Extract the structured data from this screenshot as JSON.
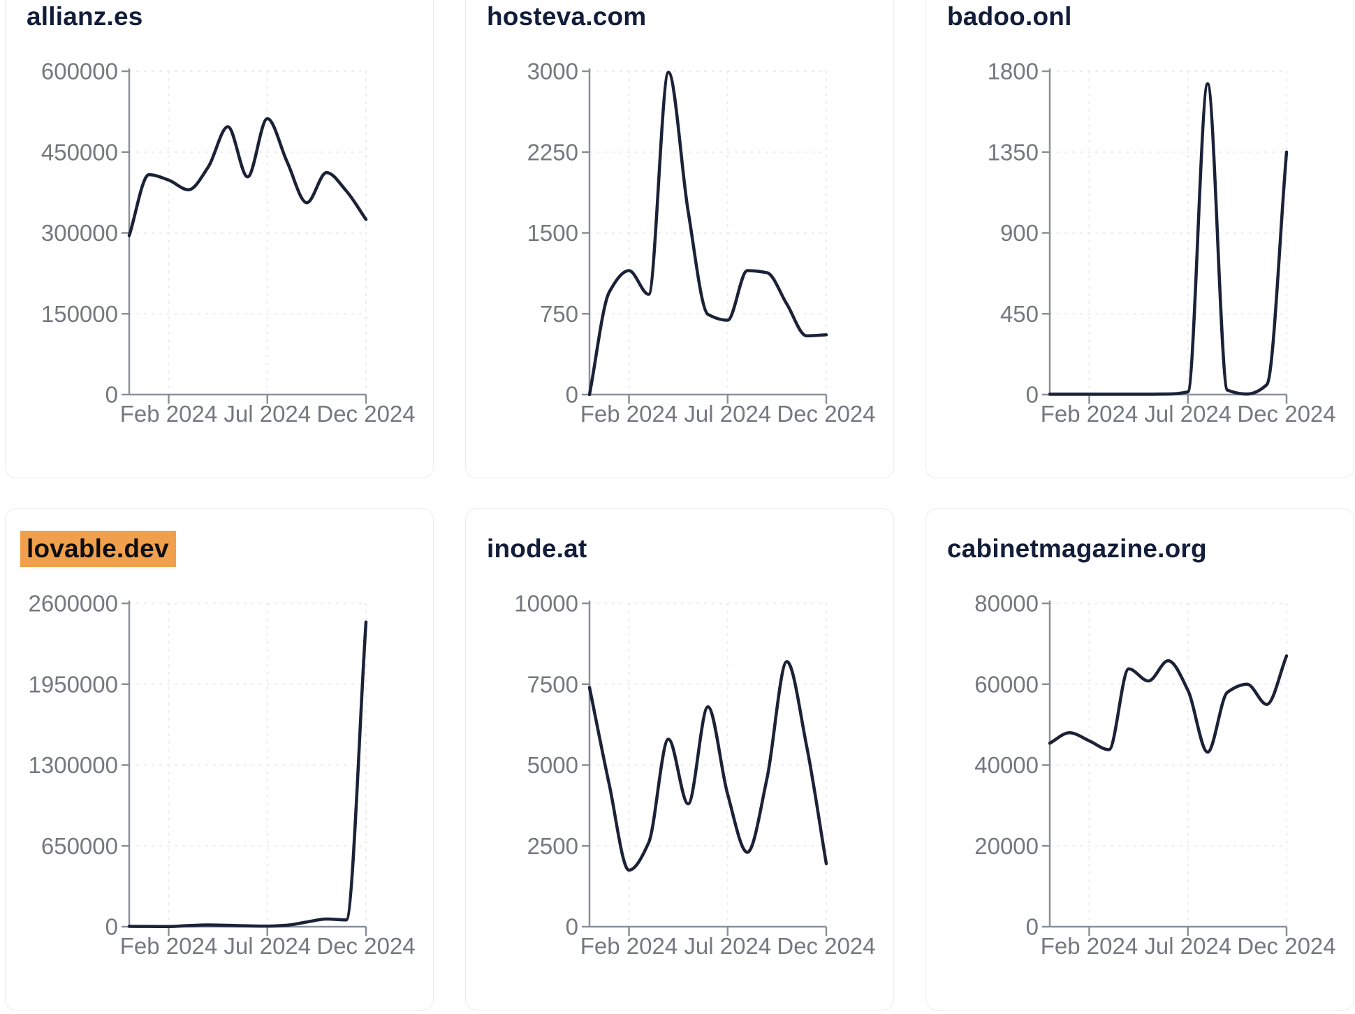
{
  "page": {
    "background": "#ffffff",
    "card_border": "#e9ecf1",
    "highlight_color": "#f0a04c",
    "line_color": "#1b2238",
    "title_color": "#121d3a",
    "axis_color": "#8a9098",
    "tick_label_color": "#74787e",
    "grid_color": "#e8eaee"
  },
  "chart_data": [
    {
      "type": "line",
      "title": "allianz.es",
      "highlighted": false,
      "x": [
        "Dec 2023",
        "Jan 2024",
        "Feb 2024",
        "Mar 2024",
        "Apr 2024",
        "May 2024",
        "Jun 2024",
        "Jul 2024",
        "Aug 2024",
        "Sep 2024",
        "Oct 2024",
        "Nov 2024",
        "Dec 2024"
      ],
      "values": [
        295000,
        408000,
        398000,
        380000,
        422000,
        497000,
        404000,
        512000,
        432000,
        356000,
        412000,
        378000,
        325000
      ],
      "ylim": [
        0,
        600000
      ],
      "y_ticks": [
        0,
        150000,
        300000,
        450000,
        600000
      ],
      "x_tick_labels": [
        "Feb 2024",
        "Jul 2024",
        "Dec 2024"
      ],
      "x_tick_indices": [
        2,
        7,
        12
      ],
      "grid": true,
      "legend": "none"
    },
    {
      "type": "line",
      "title": "hosteva.com",
      "highlighted": false,
      "x": [
        "Dec 2023",
        "Jan 2024",
        "Feb 2024",
        "Mar 2024",
        "Apr 2024",
        "May 2024",
        "Jun 2024",
        "Jul 2024",
        "Aug 2024",
        "Sep 2024",
        "Oct 2024",
        "Nov 2024",
        "Dec 2024"
      ],
      "values": [
        0,
        950,
        1150,
        930,
        2990,
        1700,
        745,
        690,
        1150,
        1130,
        840,
        545,
        555
      ],
      "ylim": [
        0,
        3000
      ],
      "y_ticks": [
        0,
        750,
        1500,
        2250,
        3000
      ],
      "x_tick_labels": [
        "Feb 2024",
        "Jul 2024",
        "Dec 2024"
      ],
      "x_tick_indices": [
        2,
        7,
        12
      ],
      "grid": true,
      "legend": "none"
    },
    {
      "type": "line",
      "title": "badoo.onl",
      "highlighted": false,
      "x": [
        "Dec 2023",
        "Jan 2024",
        "Feb 2024",
        "Mar 2024",
        "Apr 2024",
        "May 2024",
        "Jun 2024",
        "Jul 2024",
        "Aug 2024",
        "Sep 2024",
        "Oct 2024",
        "Nov 2024",
        "Dec 2024"
      ],
      "values": [
        2,
        2,
        2,
        2,
        2,
        2,
        3,
        15,
        1730,
        25,
        3,
        55,
        1350
      ],
      "ylim": [
        0,
        1800
      ],
      "y_ticks": [
        0,
        450,
        900,
        1350,
        1800
      ],
      "x_tick_labels": [
        "Feb 2024",
        "Jul 2024",
        "Dec 2024"
      ],
      "x_tick_indices": [
        2,
        7,
        12
      ],
      "grid": true,
      "legend": "none"
    },
    {
      "type": "line",
      "title": "lovable.dev",
      "highlighted": true,
      "x": [
        "Dec 2023",
        "Jan 2024",
        "Feb 2024",
        "Mar 2024",
        "Apr 2024",
        "May 2024",
        "Jun 2024",
        "Jul 2024",
        "Aug 2024",
        "Sep 2024",
        "Oct 2024",
        "Nov 2024",
        "Dec 2024"
      ],
      "values": [
        3000,
        2000,
        1500,
        9000,
        14000,
        11000,
        7000,
        5000,
        12000,
        38000,
        62000,
        55000,
        2450000
      ],
      "ylim": [
        0,
        2600000
      ],
      "y_ticks": [
        0,
        650000,
        1300000,
        1950000,
        2600000
      ],
      "x_tick_labels": [
        "Feb 2024",
        "Jul 2024",
        "Dec 2024"
      ],
      "x_tick_indices": [
        2,
        7,
        12
      ],
      "grid": true,
      "legend": "none"
    },
    {
      "type": "line",
      "title": "inode.at",
      "highlighted": false,
      "x": [
        "Dec 2023",
        "Jan 2024",
        "Feb 2024",
        "Mar 2024",
        "Apr 2024",
        "May 2024",
        "Jun 2024",
        "Jul 2024",
        "Aug 2024",
        "Sep 2024",
        "Oct 2024",
        "Nov 2024",
        "Dec 2024"
      ],
      "values": [
        7400,
        4400,
        1750,
        2600,
        5800,
        3800,
        6800,
        4100,
        2300,
        4600,
        8200,
        5600,
        1950
      ],
      "ylim": [
        0,
        10000
      ],
      "y_ticks": [
        0,
        2500,
        5000,
        7500,
        10000
      ],
      "x_tick_labels": [
        "Feb 2024",
        "Jul 2024",
        "Dec 2024"
      ],
      "x_tick_indices": [
        2,
        7,
        12
      ],
      "grid": true,
      "legend": "none"
    },
    {
      "type": "line",
      "title": "cabinetmagazine.org",
      "highlighted": false,
      "x": [
        "Dec 2023",
        "Jan 2024",
        "Feb 2024",
        "Mar 2024",
        "Apr 2024",
        "May 2024",
        "Jun 2024",
        "Jul 2024",
        "Aug 2024",
        "Sep 2024",
        "Oct 2024",
        "Nov 2024",
        "Dec 2024"
      ],
      "values": [
        45400,
        48000,
        46000,
        43800,
        63800,
        60800,
        65800,
        58500,
        43200,
        58000,
        60000,
        55000,
        67000
      ],
      "ylim": [
        0,
        80000
      ],
      "y_ticks": [
        0,
        20000,
        40000,
        60000,
        80000
      ],
      "x_tick_labels": [
        "Feb 2024",
        "Jul 2024",
        "Dec 2024"
      ],
      "x_tick_indices": [
        2,
        7,
        12
      ],
      "grid": true,
      "legend": "none"
    }
  ]
}
